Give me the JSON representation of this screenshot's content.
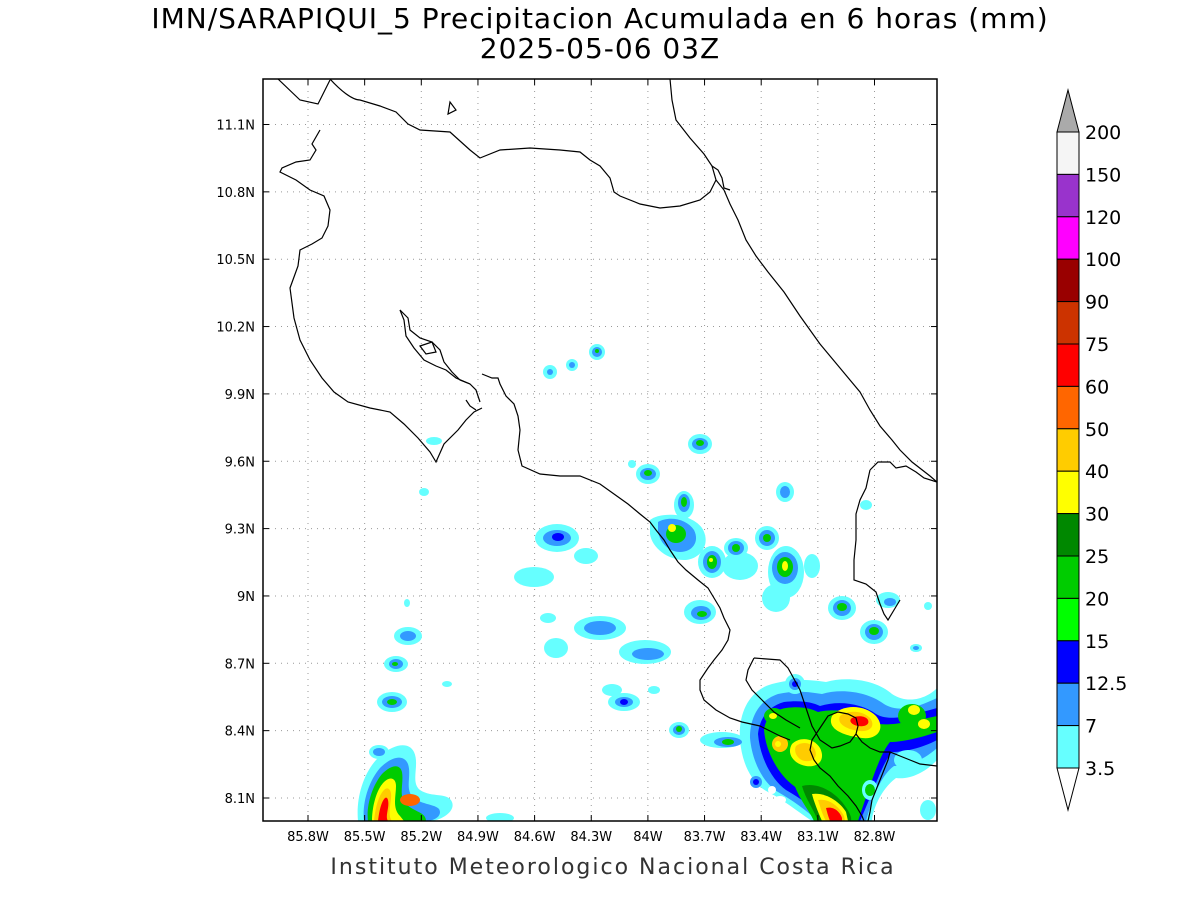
{
  "title": "IMN/SARAPIQUI_5 Precipitacion Acumulada en 6 horas (mm)",
  "subtitle": "2025-05-06 03Z",
  "credit": "Instituto Meteorologico Nacional Costa Rica",
  "map": {
    "lon_ticks": [
      "85.8W",
      "85.5W",
      "85.2W",
      "84.9W",
      "84.6W",
      "84.3W",
      "84W",
      "83.7W",
      "83.4W",
      "83.1W",
      "82.8W"
    ],
    "lat_ticks": [
      "11.1N",
      "10.8N",
      "10.5N",
      "10.2N",
      "9.9N",
      "9.6N",
      "9.3N",
      "9N",
      "8.7N",
      "8.4N",
      "8.1N"
    ],
    "lon_range": [
      -86.05,
      -83.05
    ],
    "lat_range": [
      8.0,
      11.3
    ],
    "grid": true
  },
  "colorbar": {
    "levels": [
      "3.5",
      "7",
      "12.5",
      "15",
      "20",
      "25",
      "30",
      "40",
      "50",
      "60",
      "75",
      "90",
      "100",
      "120",
      "150",
      "200"
    ],
    "colors": [
      "#66ffff",
      "#3399ff",
      "#0000ff",
      "#00ff00",
      "#00cc00",
      "#008800",
      "#ffff00",
      "#ffcc00",
      "#ff6600",
      "#ff0000",
      "#cc3300",
      "#990000",
      "#ff00ff",
      "#9933cc",
      "#f5f5f5"
    ],
    "over_color": "#aaaaaa",
    "under_color": "#ffffff"
  }
}
